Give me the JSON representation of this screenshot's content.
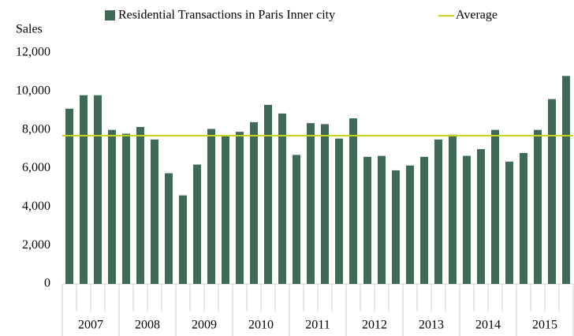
{
  "chart_data": {
    "type": "bar",
    "y_axis_label": "Sales",
    "categories": [
      null,
      null,
      null,
      null,
      null,
      null,
      null,
      null,
      null,
      null,
      null,
      null,
      null,
      null,
      null,
      null,
      null,
      null,
      null,
      null,
      null,
      null,
      null,
      null,
      null,
      null,
      null,
      null,
      null,
      null,
      null,
      null,
      null,
      null,
      null,
      null
    ],
    "category_groups": [
      "2007",
      "2008",
      "2009",
      "2010",
      "2011",
      "2012",
      "2013",
      "2014",
      "2015"
    ],
    "series": [
      {
        "name": "Residential Transactions in Paris Inner city",
        "color": "#3d6b56",
        "values": [
          9100,
          9800,
          9800,
          8000,
          7800,
          8150,
          7500,
          5750,
          4600,
          6200,
          8050,
          7700,
          7900,
          8400,
          9300,
          8850,
          6700,
          8350,
          8300,
          7550,
          8600,
          6600,
          6650,
          5900,
          6150,
          6600,
          7500,
          7750,
          6650,
          7000,
          8000,
          6350,
          6800,
          8000,
          9600,
          10800
        ]
      }
    ],
    "average": {
      "name": "Average",
      "value": 7700,
      "color": "#c5d31a"
    },
    "ylim": [
      0,
      12000
    ],
    "yticks": [
      0,
      {
        "value": 2000,
        "label": "2,000"
      },
      {
        "value": 4000,
        "label": "4,000"
      },
      {
        "value": 6000,
        "label": "6,000"
      },
      {
        "value": 8000,
        "label": "8,000"
      },
      {
        "value": 10000,
        "label": "10,000"
      },
      {
        "value": 12000,
        "label": "12,000"
      }
    ],
    "grid": false
  }
}
